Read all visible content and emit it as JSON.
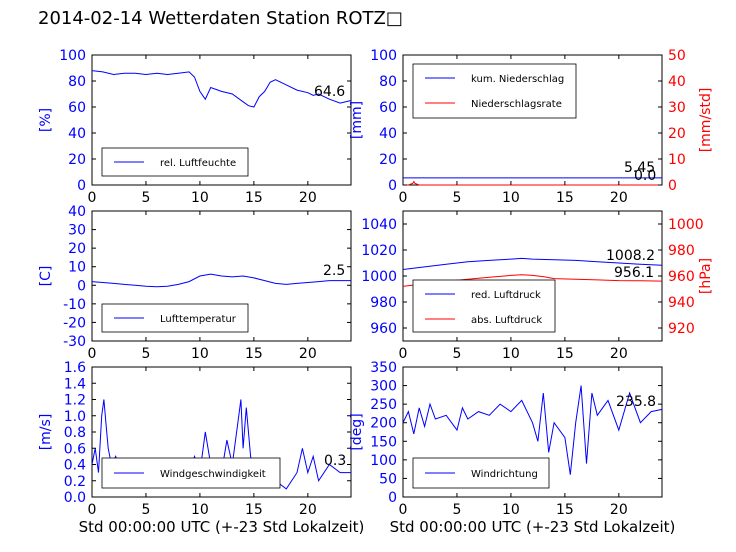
{
  "title": "2014-02-14 Wetterdaten Station ROTZ",
  "title_suffix_glyph": "□",
  "colors": {
    "blue": "#0000ff",
    "red": "#ff0000",
    "axis": "#000000"
  },
  "chart_data": [
    {
      "id": "humidity",
      "type": "line",
      "ylabel": "[%]",
      "ylim": [
        0,
        100
      ],
      "yticks": [
        0,
        20,
        40,
        60,
        80,
        100
      ],
      "xlim": [
        0,
        24
      ],
      "xticks": [
        0,
        5,
        10,
        15,
        20
      ],
      "series": [
        {
          "name": "rel. Luftfeuchte",
          "color": "#0000ff",
          "x": [
            0,
            1,
            2,
            3,
            4,
            5,
            6,
            7,
            8,
            9,
            9.5,
            10,
            10.5,
            11,
            12,
            13,
            14,
            14.5,
            15,
            15.5,
            16,
            16.5,
            17,
            17.5,
            18,
            19,
            20,
            20.5,
            21,
            22,
            23,
            24
          ],
          "y": [
            88,
            87,
            85,
            86,
            86,
            85,
            86,
            85,
            86,
            87,
            83,
            72,
            66,
            75,
            72,
            70,
            64,
            61,
            60,
            68,
            72,
            79,
            81,
            79,
            77,
            73,
            71,
            69,
            70,
            66,
            63,
            65
          ]
        }
      ],
      "annotations": [
        "64.6"
      ],
      "legend": "lower-left"
    },
    {
      "id": "precip",
      "type": "line",
      "ylabel": "[mm]",
      "ylim": [
        0,
        100
      ],
      "yticks": [
        0,
        20,
        40,
        60,
        80,
        100
      ],
      "y2label": "[mm/std]",
      "y2lim": [
        0,
        50
      ],
      "y2ticks": [
        0,
        10,
        20,
        30,
        40,
        50
      ],
      "xlim": [
        0,
        24
      ],
      "xticks": [
        0,
        5,
        10,
        15,
        20
      ],
      "series": [
        {
          "name": "kum. Niederschlag",
          "color": "#0000ff",
          "axis": "left",
          "x": [
            0,
            24
          ],
          "y": [
            5.45,
            5.45
          ]
        },
        {
          "name": "Niederschlagsrate",
          "color": "#ff0000",
          "axis": "right",
          "x": [
            0,
            0.5,
            0.9,
            1.0,
            1.1,
            1.5,
            24
          ],
          "y": [
            0,
            0,
            0.6,
            1.3,
            0.6,
            0,
            0
          ]
        }
      ],
      "annotations": [
        "5.45",
        "0.0"
      ],
      "legend": "upper-left"
    },
    {
      "id": "temperature",
      "type": "line",
      "ylabel": "[C]",
      "ylim": [
        -30,
        40
      ],
      "yticks": [
        -30,
        -20,
        -10,
        0,
        10,
        20,
        30,
        40
      ],
      "xlim": [
        0,
        24
      ],
      "xticks": [
        0,
        5,
        10,
        15,
        20
      ],
      "series": [
        {
          "name": "Lufttemperatur",
          "color": "#0000ff",
          "x": [
            0,
            1,
            2,
            3,
            4,
            5,
            6,
            7,
            8,
            9,
            10,
            11,
            12,
            13,
            14,
            15,
            16,
            17,
            18,
            19,
            20,
            21,
            22,
            23,
            24
          ],
          "y": [
            2,
            1.5,
            1,
            0.5,
            0,
            -0.5,
            -0.8,
            -0.5,
            0.5,
            2,
            5,
            6,
            5,
            4.5,
            5,
            4,
            2.5,
            1,
            0.5,
            1,
            1.5,
            2,
            2.5,
            2.5,
            2.5
          ]
        }
      ],
      "annotations": [
        "2.5"
      ],
      "legend": "lower-left"
    },
    {
      "id": "pressure",
      "type": "line",
      "ylabel": "",
      "ylim": [
        950,
        1050
      ],
      "yticks": [
        960,
        980,
        1000,
        1020,
        1040
      ],
      "y2label": "[hPa]",
      "y2lim": [
        910,
        1010
      ],
      "y2ticks": [
        920,
        940,
        960,
        980,
        1000
      ],
      "xlim": [
        0,
        24
      ],
      "xticks": [
        0,
        5,
        10,
        15,
        20
      ],
      "series": [
        {
          "name": "red. Luftdruck",
          "color": "#0000ff",
          "axis": "left",
          "x": [
            0,
            2,
            4,
            6,
            8,
            10,
            11,
            12,
            14,
            16,
            18,
            20,
            22,
            24
          ],
          "y": [
            1005,
            1007,
            1009,
            1011,
            1012,
            1013,
            1013.5,
            1013,
            1012.5,
            1012,
            1011,
            1010,
            1009,
            1008.2
          ]
        },
        {
          "name": "abs. Luftdruck",
          "color": "#ff0000",
          "axis": "right",
          "x": [
            0,
            2,
            4,
            6,
            8,
            10,
            11,
            12,
            13,
            14,
            16,
            18,
            20,
            22,
            24
          ],
          "y": [
            952,
            954,
            956,
            957.5,
            959,
            960.5,
            961,
            960.5,
            959.5,
            958,
            957.5,
            957,
            956.5,
            956.3,
            956.1
          ]
        }
      ],
      "annotations": [
        "1008.2",
        "956.1"
      ],
      "legend": "lower-left"
    },
    {
      "id": "windspeed",
      "type": "line",
      "ylabel": "[m/s]",
      "ylim": [
        0,
        1.6
      ],
      "yticks": [
        0.0,
        0.2,
        0.4,
        0.6,
        0.8,
        1.0,
        1.2,
        1.4,
        1.6
      ],
      "ytick_labels": [
        "0.0",
        "0.2",
        "0.4",
        "0.6",
        "0.8",
        "1.0",
        "1.2",
        "1.4",
        "1.6"
      ],
      "xlim": [
        0,
        24
      ],
      "xticks": [
        0,
        5,
        10,
        15,
        20
      ],
      "xlabel": "Std 00:00:00 UTC (+-23 Std Lokalzeit)",
      "series": [
        {
          "name": "Windgeschwindigkeit",
          "color": "#0000ff",
          "x": [
            0,
            0.3,
            0.6,
            0.9,
            1.1,
            1.3,
            1.5,
            1.8,
            2.2,
            2.6,
            3,
            4,
            5,
            6,
            7,
            8,
            9,
            9.5,
            10,
            10.5,
            11,
            12,
            12.5,
            13,
            13.5,
            13.8,
            14,
            14.3,
            14.7,
            15,
            16,
            17,
            18,
            19,
            19.5,
            20,
            20.5,
            21,
            22,
            23,
            24
          ],
          "y": [
            0.4,
            0.6,
            0.3,
            1.0,
            1.2,
            0.9,
            0.6,
            0.4,
            0.5,
            0.3,
            0.4,
            0.3,
            0.4,
            0.3,
            0.4,
            0.3,
            0.3,
            0.5,
            0.3,
            0.8,
            0.4,
            0.3,
            0.7,
            0.4,
            0.9,
            1.2,
            0.6,
            1.1,
            0.5,
            0.3,
            0.4,
            0.2,
            0.1,
            0.3,
            0.6,
            0.3,
            0.5,
            0.2,
            0.4,
            0.3,
            0.3
          ]
        }
      ],
      "annotations": [
        "0.3"
      ],
      "legend": "lower-left"
    },
    {
      "id": "winddir",
      "type": "line",
      "ylabel": "[deg]",
      "ylim": [
        0,
        350
      ],
      "yticks": [
        0,
        50,
        100,
        150,
        200,
        250,
        300,
        350
      ],
      "xlim": [
        0,
        24
      ],
      "xticks": [
        0,
        5,
        10,
        15,
        20
      ],
      "xlabel": "Std 00:00:00 UTC (+-23 Std Lokalzeit)",
      "series": [
        {
          "name": "Windrichtung",
          "color": "#0000ff",
          "x": [
            0,
            0.5,
            1,
            1.5,
            2,
            2.5,
            3,
            4,
            5,
            5.5,
            6,
            7,
            8,
            9,
            10,
            11,
            12,
            12.5,
            13,
            13.5,
            14,
            15,
            15.5,
            16,
            16.5,
            17,
            17.5,
            18,
            19,
            20,
            21,
            22,
            23,
            24
          ],
          "y": [
            200,
            230,
            170,
            240,
            190,
            250,
            210,
            220,
            180,
            240,
            210,
            230,
            220,
            250,
            230,
            260,
            200,
            150,
            280,
            120,
            200,
            160,
            60,
            200,
            300,
            90,
            280,
            220,
            260,
            180,
            280,
            200,
            230,
            235.8
          ]
        }
      ],
      "annotations": [
        "235.8"
      ],
      "legend": "lower-left"
    }
  ]
}
